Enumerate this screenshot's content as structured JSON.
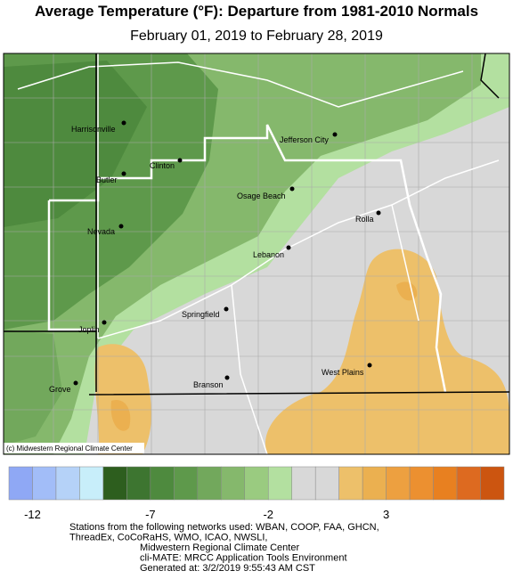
{
  "header": {
    "title": "Average Temperature (°F): Departure from 1981-2010 Normals",
    "subtitle": "February 01, 2019 to February 28, 2019"
  },
  "map": {
    "credit": "(c) Midwestern Regional Climate Center",
    "cities": [
      "Harrisonville",
      "Jefferson City",
      "Clinton",
      "Butler",
      "Osage Beach",
      "Rolla",
      "Nevada",
      "Lebanon",
      "Springfield",
      "Joplin",
      "West Plains",
      "Branson",
      "Grove"
    ]
  },
  "legend": {
    "colors": [
      "#8fa8f5",
      "#a2bdf8",
      "#b5d2f8",
      "#c8eefa",
      "#2d5e1e",
      "#3d7530",
      "#4e8a3e",
      "#5e994b",
      "#72a85c",
      "#85b86c",
      "#9acb80",
      "#b3e0a0",
      "#d8d8d8",
      "#d8d8d8",
      "#edc06a",
      "#ebb050",
      "#eda040",
      "#ec9030",
      "#e88020",
      "#dd6a20",
      "#cc5510"
    ],
    "labels": [
      -12,
      -7,
      -2,
      3
    ]
  },
  "footer": [
    "Stations from the following networks used: WBAN, COOP, FAA, GHCN,",
    "ThreadEx, CoCoRaHS, WMO, ICAO, NWSLI,",
    "Midwestern Regional Climate Center",
    "cli-MATE: MRCC Application Tools Environment",
    "Generated at: 3/2/2019 9:55:43 AM CST"
  ]
}
